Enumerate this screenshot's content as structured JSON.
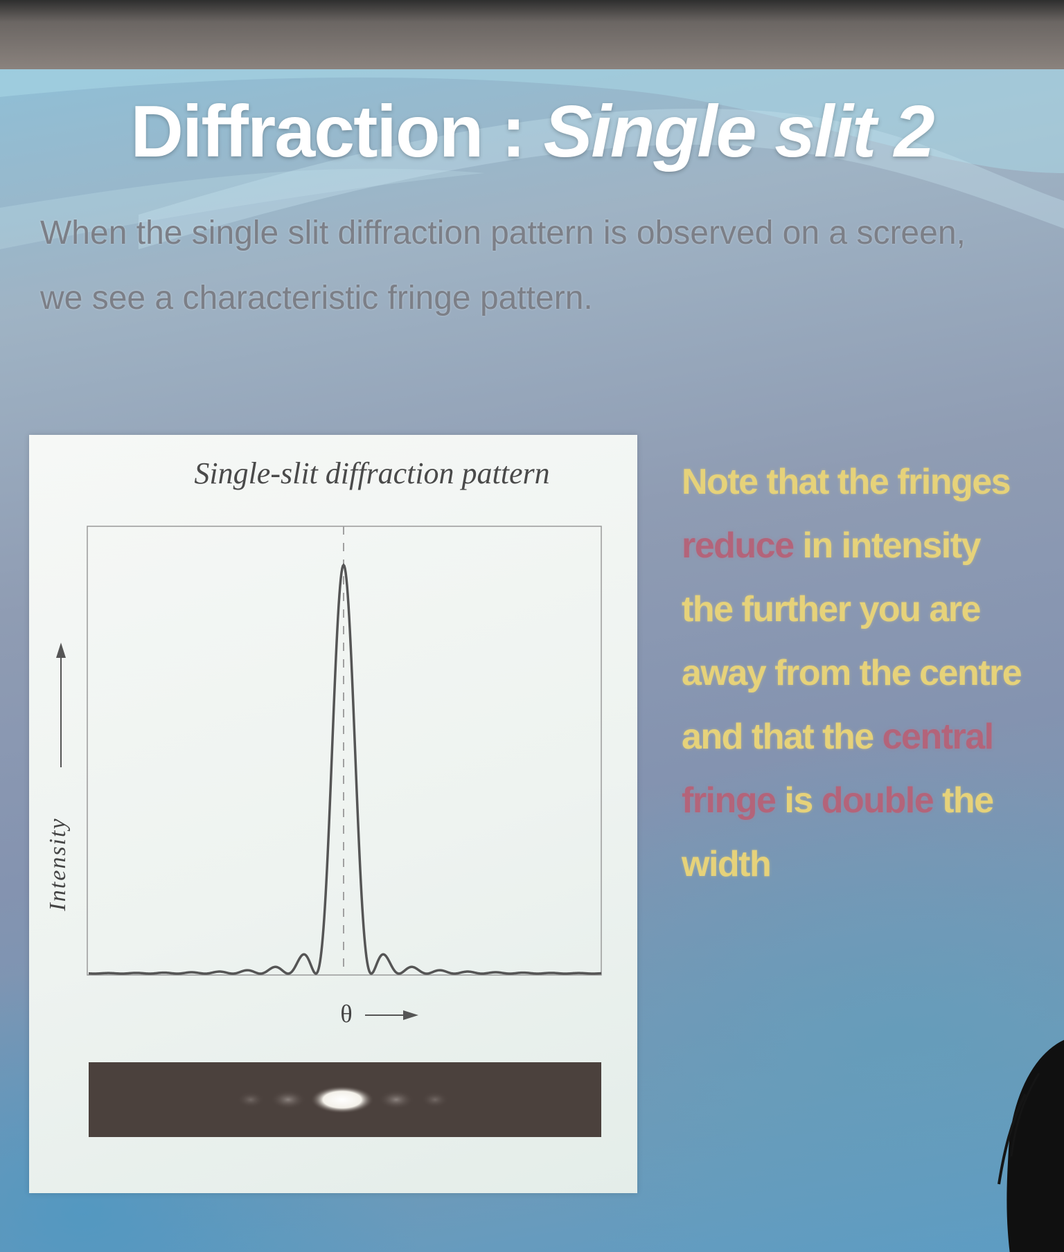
{
  "slide": {
    "title_plain": "Diffraction : ",
    "title_italic": "Single slit 2",
    "intro": "When the single slit diffraction pattern is observed on a screen, we see a characteristic fringe pattern."
  },
  "figure": {
    "caption": "Single-slit diffraction pattern",
    "ylabel": "Intensity",
    "xlabel": "θ"
  },
  "note": {
    "part1": "Note that the fringes ",
    "part2": "reduce",
    "part3": " in intensity the further you are away from the centre and that the ",
    "part4": "central fringe",
    "part5": " is ",
    "part6": "double",
    "part7": " the width"
  },
  "colors": {
    "title": "#ffffff",
    "intro_text": "#7c7f87",
    "note_text": "#e6d27a",
    "note_highlight": "#b3647a"
  }
}
